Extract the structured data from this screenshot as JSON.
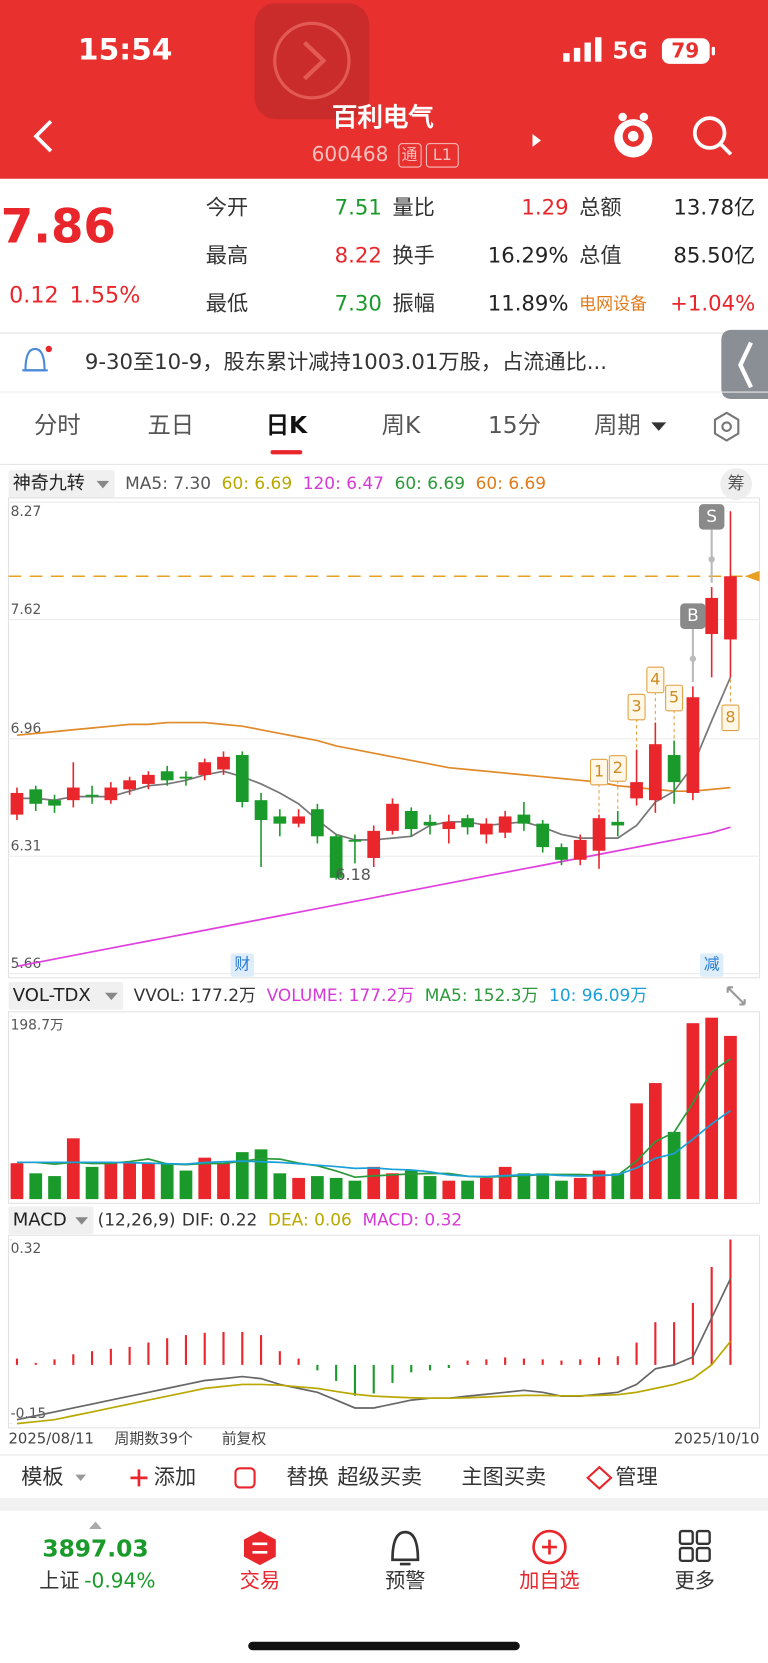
{
  "status_bar": {
    "time": "15:54",
    "network": "5G",
    "battery": "79"
  },
  "header": {
    "title": "百利电气",
    "code": "600468",
    "tags": [
      "通",
      "L1"
    ]
  },
  "quote": {
    "price": "7.86",
    "change": "0.12",
    "change_pct": "1.55%",
    "fields": [
      {
        "label": "今开",
        "value": "7.51",
        "color": "#1a9a2a"
      },
      {
        "label": "量比",
        "value": "1.29",
        "color": "#e8262b"
      },
      {
        "label": "总额",
        "value": "13.78亿",
        "color": "#222222"
      },
      {
        "label": "最高",
        "value": "8.22",
        "color": "#e8262b"
      },
      {
        "label": "换手",
        "value": "16.29%",
        "color": "#222222"
      },
      {
        "label": "总值",
        "value": "85.50亿",
        "color": "#222222"
      },
      {
        "label": "最低",
        "value": "7.30",
        "color": "#1a9a2a"
      },
      {
        "label": "振幅",
        "value": "11.89%",
        "color": "#222222"
      },
      {
        "label": "电网设备",
        "value": "+1.04%",
        "color": "#e8262b"
      }
    ]
  },
  "notice": "9-30至10-9，股东累计减持1003.01万股，占流通比...",
  "tabs": [
    "分时",
    "五日",
    "日K",
    "周K",
    "15分",
    "周期"
  ],
  "chart_data": [
    {
      "type": "candlestick",
      "indicator": "神奇九转",
      "chip_button": "筹",
      "legend": [
        {
          "text": "MA5: 7.30",
          "color": "#555555"
        },
        {
          "text": "60: 6.69",
          "color": "#b8a800"
        },
        {
          "text": "120: 6.47",
          "color": "#d63ad6"
        },
        {
          "text": "60: 6.69",
          "color": "#2a9a3a"
        },
        {
          "text": "60: 6.69",
          "color": "#e07a1a"
        }
      ],
      "ylim": [
        5.66,
        8.27
      ],
      "yticks": [
        5.66,
        6.31,
        6.96,
        7.62,
        8.27
      ],
      "grid": true,
      "up_color": "#e8262b",
      "down_color": "#1a9a2a",
      "open": [
        6.54,
        6.68,
        6.62,
        6.62,
        6.65,
        6.62,
        6.68,
        6.71,
        6.78,
        6.75,
        6.76,
        6.79,
        6.87,
        6.62,
        6.53,
        6.49,
        6.57,
        6.42,
        6.4,
        6.3,
        6.45,
        6.56,
        6.5,
        6.46,
        6.52,
        6.43,
        6.44,
        6.54,
        6.49,
        6.36,
        6.29,
        6.34,
        6.5,
        6.63,
        6.62,
        6.87,
        6.66,
        7.54,
        7.51
      ],
      "high": [
        6.69,
        6.7,
        6.65,
        6.83,
        6.7,
        6.72,
        6.75,
        6.78,
        6.81,
        6.78,
        6.85,
        6.89,
        6.89,
        6.66,
        6.57,
        6.57,
        6.6,
        6.43,
        6.43,
        6.48,
        6.63,
        6.58,
        6.54,
        6.54,
        6.54,
        6.52,
        6.56,
        6.61,
        6.51,
        6.38,
        6.43,
        6.54,
        6.56,
        6.9,
        7.05,
        6.95,
        7.25,
        7.8,
        8.22
      ],
      "low": [
        6.51,
        6.56,
        6.55,
        6.58,
        6.6,
        6.6,
        6.65,
        6.68,
        6.7,
        6.7,
        6.73,
        6.76,
        6.58,
        6.25,
        6.42,
        6.47,
        6.38,
        6.18,
        6.27,
        6.25,
        6.43,
        6.42,
        6.43,
        6.38,
        6.43,
        6.38,
        6.41,
        6.45,
        6.33,
        6.26,
        6.26,
        6.24,
        6.42,
        6.59,
        6.55,
        6.6,
        6.62,
        7.3,
        7.3
      ],
      "close": [
        6.66,
        6.6,
        6.59,
        6.69,
        6.64,
        6.69,
        6.73,
        6.76,
        6.73,
        6.74,
        6.83,
        6.86,
        6.61,
        6.51,
        6.49,
        6.53,
        6.42,
        6.19,
        6.39,
        6.45,
        6.6,
        6.46,
        6.48,
        6.5,
        6.47,
        6.49,
        6.53,
        6.49,
        6.36,
        6.29,
        6.4,
        6.52,
        6.48,
        6.72,
        6.93,
        6.72,
        7.19,
        7.74,
        7.86
      ],
      "series": [
        {
          "color": "#777777",
          "values": [
            6.63,
            6.63,
            6.62,
            6.64,
            6.64,
            6.64,
            6.67,
            6.7,
            6.71,
            6.73,
            6.76,
            6.78,
            6.75,
            6.71,
            6.66,
            6.6,
            6.51,
            6.43,
            6.4,
            6.4,
            6.41,
            6.42,
            6.48,
            6.5,
            6.5,
            6.48,
            6.49,
            6.5,
            6.47,
            6.43,
            6.41,
            6.41,
            6.41,
            6.48,
            6.61,
            6.67,
            6.81,
            7.06,
            7.3
          ]
        },
        {
          "color": "#e08a2a",
          "values": [
            6.98,
            6.99,
            7.0,
            7.01,
            7.02,
            7.03,
            7.04,
            7.04,
            7.05,
            7.05,
            7.05,
            7.04,
            7.03,
            7.01,
            6.99,
            6.97,
            6.95,
            6.92,
            6.9,
            6.88,
            6.86,
            6.84,
            6.82,
            6.8,
            6.79,
            6.78,
            6.77,
            6.76,
            6.75,
            6.74,
            6.73,
            6.72,
            6.7,
            6.69,
            6.68,
            6.67,
            6.67,
            6.68,
            6.69
          ]
        },
        {
          "color": "#e040e0",
          "values": [
            5.7,
            5.72,
            5.74,
            5.76,
            5.78,
            5.8,
            5.82,
            5.84,
            5.86,
            5.88,
            5.9,
            5.92,
            5.94,
            5.96,
            5.98,
            6.0,
            6.02,
            6.04,
            6.06,
            6.08,
            6.1,
            6.12,
            6.14,
            6.16,
            6.18,
            6.2,
            6.22,
            6.24,
            6.26,
            6.28,
            6.3,
            6.32,
            6.34,
            6.36,
            6.38,
            6.4,
            6.42,
            6.44,
            6.47
          ]
        }
      ],
      "price_line": 7.86,
      "price_line_color": "#e8a020",
      "td_labels": [
        null,
        null,
        null,
        null,
        null,
        null,
        null,
        null,
        null,
        null,
        null,
        null,
        null,
        null,
        null,
        null,
        null,
        null,
        null,
        null,
        null,
        null,
        null,
        null,
        null,
        null,
        null,
        null,
        null,
        null,
        null,
        "1",
        "2",
        "3",
        "4",
        "5",
        null,
        null,
        "8"
      ],
      "signals": [
        null,
        null,
        null,
        null,
        null,
        null,
        null,
        null,
        null,
        null,
        null,
        null,
        null,
        null,
        null,
        null,
        null,
        null,
        null,
        null,
        null,
        null,
        null,
        null,
        null,
        null,
        null,
        null,
        null,
        null,
        null,
        null,
        null,
        null,
        null,
        null,
        "B",
        "S",
        null
      ],
      "events": [
        null,
        null,
        null,
        null,
        null,
        null,
        null,
        null,
        null,
        null,
        null,
        null,
        "财",
        null,
        null,
        null,
        null,
        null,
        null,
        null,
        null,
        null,
        null,
        null,
        null,
        null,
        null,
        null,
        null,
        null,
        null,
        null,
        null,
        null,
        null,
        null,
        null,
        "减",
        null
      ],
      "low_labels": [
        null,
        null,
        null,
        null,
        null,
        null,
        null,
        null,
        null,
        null,
        null,
        null,
        null,
        null,
        null,
        null,
        null,
        "6.18",
        null,
        null,
        null,
        null,
        null,
        null,
        null,
        null,
        null,
        null,
        null,
        null,
        null,
        null,
        null,
        null,
        null,
        null,
        null,
        null,
        null
      ]
    },
    {
      "type": "volume",
      "indicator": "VOL-TDX",
      "legend": [
        {
          "text": "VVOL: 177.2万",
          "color": "#333333"
        },
        {
          "text": "VOLUME: 177.2万",
          "color": "#d63ad6"
        },
        {
          "text": "MA5: 152.3万",
          "color": "#2a9a3a"
        },
        {
          "text": "10: 96.09万",
          "color": "#1aa0d8"
        }
      ],
      "ylim": [
        0,
        198.7
      ],
      "yticks": [
        {
          "value": 198.7,
          "label": "198.7万"
        }
      ],
      "values": [
        39,
        28,
        25,
        66,
        35,
        39,
        39,
        39,
        39,
        31,
        45,
        39,
        51,
        54,
        28,
        23,
        25,
        23,
        20,
        35,
        28,
        31,
        25,
        20,
        20,
        23,
        35,
        28,
        28,
        20,
        23,
        31,
        28,
        104,
        126,
        73,
        191,
        197,
        177.2
      ],
      "series": [
        {
          "color": "#2a9a3a",
          "values": [
            40,
            40,
            38,
            40,
            38.6,
            38.8,
            40.8,
            43.6,
            38.2,
            37.4,
            38.6,
            38.6,
            41,
            44,
            43.4,
            39,
            36.2,
            30.6,
            23.8,
            25.2,
            26.2,
            27.4,
            27.8,
            27.8,
            24.8,
            23.8,
            24.6,
            25.2,
            26.8,
            26.8,
            26.8,
            26,
            26,
            41.2,
            62.4,
            72.4,
            104.4,
            138.2,
            152.3
          ]
        },
        {
          "color": "#1aa0d8",
          "values": [
            40,
            40,
            40,
            40,
            40,
            40,
            39.5,
            39,
            38.5,
            38,
            39.7,
            40.6,
            41.2,
            40.6,
            39.9,
            38.3,
            36.9,
            35.3,
            33.4,
            33.8,
            32.4,
            31.6,
            29.6,
            26.2,
            24.8,
            24.5,
            25.5,
            26.3,
            26.8,
            25.6,
            25.1,
            25.5,
            26.4,
            33.8,
            44.4,
            49.4,
            65,
            81.7,
            96.09
          ]
        }
      ]
    },
    {
      "type": "macd",
      "indicator": "MACD",
      "params": "(12,26,9)",
      "legend": [
        {
          "text": "DIF: 0.22",
          "color": "#333333"
        },
        {
          "text": "DEA: 0.06",
          "color": "#b8a800"
        },
        {
          "text": "MACD: 0.32",
          "color": "#d63ad6"
        }
      ],
      "ylim": [
        -0.15,
        0.32
      ],
      "yticks": [
        -0.15,
        0.32
      ],
      "up_color": "#e8262b",
      "down_color": "#1a9a2a",
      "values": [
        0.016,
        0.005,
        0.014,
        0.027,
        0.035,
        0.041,
        0.046,
        0.057,
        0.068,
        0.076,
        0.082,
        0.084,
        0.084,
        0.076,
        0.035,
        0.016,
        -0.014,
        -0.041,
        -0.079,
        -0.073,
        -0.046,
        -0.019,
        -0.014,
        -0.008,
        0.011,
        0.014,
        0.019,
        0.016,
        0.014,
        0.011,
        0.014,
        0.019,
        0.022,
        0.057,
        0.109,
        0.109,
        0.158,
        0.25,
        0.32
      ],
      "series": [
        {
          "color": "#666666",
          "values": [
            -0.14,
            -0.13,
            -0.12,
            -0.11,
            -0.1,
            -0.09,
            -0.08,
            -0.07,
            -0.06,
            -0.05,
            -0.04,
            -0.035,
            -0.03,
            -0.035,
            -0.05,
            -0.06,
            -0.07,
            -0.09,
            -0.11,
            -0.11,
            -0.1,
            -0.09,
            -0.085,
            -0.085,
            -0.08,
            -0.075,
            -0.07,
            -0.065,
            -0.07,
            -0.08,
            -0.08,
            -0.075,
            -0.07,
            -0.05,
            -0.01,
            0.0,
            0.02,
            0.12,
            0.22
          ]
        },
        {
          "color": "#b8a800",
          "values": [
            -0.15,
            -0.145,
            -0.14,
            -0.13,
            -0.12,
            -0.11,
            -0.1,
            -0.09,
            -0.08,
            -0.07,
            -0.06,
            -0.055,
            -0.05,
            -0.05,
            -0.052,
            -0.056,
            -0.06,
            -0.068,
            -0.075,
            -0.08,
            -0.082,
            -0.084,
            -0.085,
            -0.085,
            -0.084,
            -0.082,
            -0.08,
            -0.078,
            -0.078,
            -0.079,
            -0.079,
            -0.078,
            -0.076,
            -0.07,
            -0.06,
            -0.05,
            -0.035,
            0.0,
            0.06
          ]
        }
      ]
    }
  ],
  "chart_footer": {
    "start_date": "2025/08/11",
    "period_count": "周期数39个",
    "adjust": "前复权",
    "end_date": "2025/10/10"
  },
  "toolbar": [
    "模板",
    "添加",
    "替换",
    "超级买卖",
    "主图买卖",
    "管理"
  ],
  "bottom_nav": {
    "index_value": "3897.03",
    "index_name": "上证",
    "index_change": "-0.94%",
    "items": [
      "交易",
      "预警",
      "加自选",
      "更多"
    ]
  }
}
